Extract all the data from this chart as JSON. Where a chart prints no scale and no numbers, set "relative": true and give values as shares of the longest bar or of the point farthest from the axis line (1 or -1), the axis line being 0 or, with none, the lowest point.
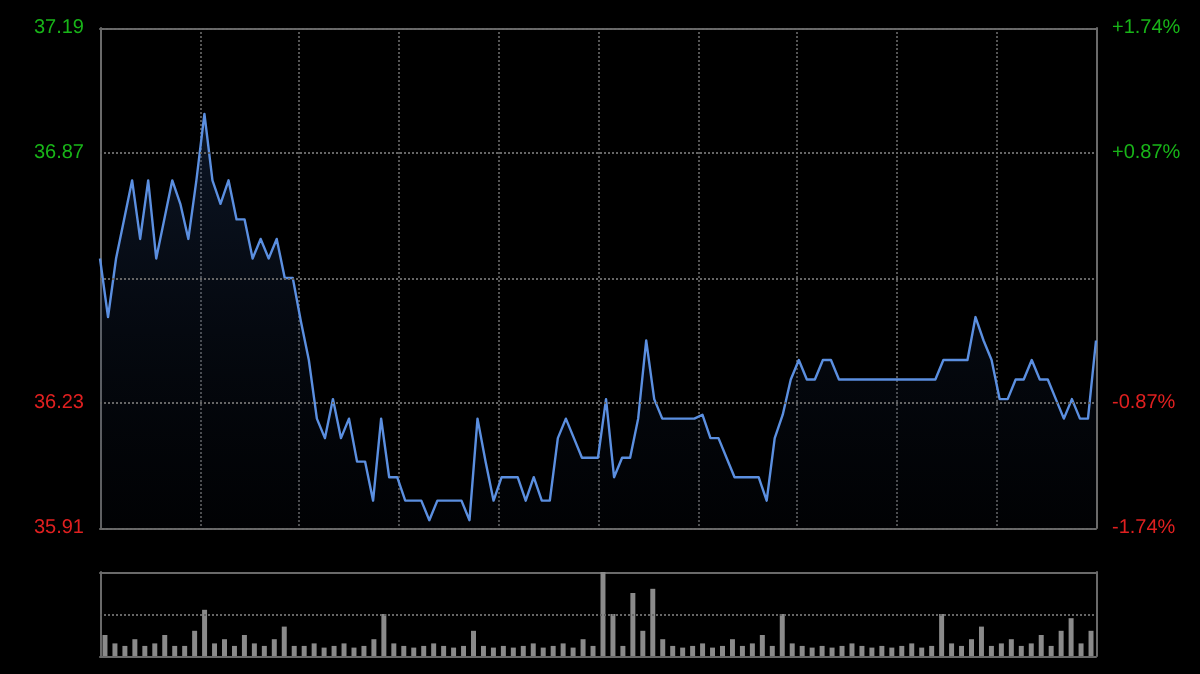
{
  "chart_data": [
    {
      "type": "area",
      "categories": [
        null,
        null,
        null,
        null,
        null,
        null,
        null,
        null,
        null,
        null,
        null,
        null,
        null,
        null,
        null,
        null,
        null,
        null,
        null,
        null,
        null,
        null,
        null,
        null,
        null,
        null,
        null,
        null,
        null,
        null,
        null,
        null,
        null,
        null,
        null,
        null,
        null,
        null,
        null,
        null,
        null,
        null,
        null,
        null,
        null,
        null,
        null,
        null,
        null,
        null,
        null,
        null,
        null,
        null,
        null,
        null,
        null,
        null,
        null,
        null,
        null,
        null,
        null,
        null,
        null,
        null,
        null,
        null,
        null,
        null,
        null,
        null,
        null,
        null,
        null,
        null,
        null,
        null,
        null,
        null,
        null,
        null,
        null,
        null,
        null,
        null,
        null,
        null,
        null,
        null,
        null,
        null,
        null,
        null,
        null,
        null,
        null,
        null,
        null,
        null,
        null,
        null,
        null,
        null,
        null,
        null,
        null,
        null,
        null,
        null,
        null,
        null,
        null,
        null,
        null,
        null,
        null,
        null,
        null,
        null,
        null,
        null,
        null,
        null,
        null
      ],
      "series": [
        {
          "color": "#5b8fe0",
          "values": [
            36.6,
            36.45,
            36.6,
            36.7,
            36.8,
            36.65,
            36.8,
            36.6,
            36.7,
            36.8,
            36.74,
            36.65,
            36.8,
            36.97,
            36.8,
            36.74,
            36.8,
            36.7,
            36.7,
            36.6,
            36.65,
            36.6,
            36.65,
            36.55,
            36.55,
            36.44,
            36.34,
            36.19,
            36.14,
            36.24,
            36.14,
            36.19,
            36.08,
            36.08,
            35.98,
            36.19,
            36.04,
            36.04,
            35.98,
            35.98,
            35.98,
            35.93,
            35.98,
            35.98,
            35.98,
            35.98,
            35.93,
            36.19,
            36.08,
            35.98,
            36.04,
            36.04,
            36.04,
            35.98,
            36.04,
            35.98,
            35.98,
            36.14,
            36.19,
            36.14,
            36.09,
            36.09,
            36.09,
            36.24,
            36.04,
            36.09,
            36.09,
            36.19,
            36.39,
            36.24,
            36.19,
            36.19,
            36.19,
            36.19,
            36.19,
            36.2,
            36.14,
            36.14,
            36.09,
            36.04,
            36.04,
            36.04,
            36.04,
            35.98,
            36.14,
            36.2,
            36.29,
            36.34,
            36.29,
            36.29,
            36.34,
            36.34,
            36.29,
            36.29,
            36.29,
            36.29,
            36.29,
            36.29,
            36.29,
            36.29,
            36.29,
            36.29,
            36.29,
            36.29,
            36.29,
            36.34,
            36.34,
            36.34,
            36.34,
            36.45,
            36.39,
            36.34,
            36.24,
            36.24,
            36.29,
            36.29,
            36.34,
            36.29,
            36.29,
            36.24,
            36.19,
            36.24,
            36.19,
            36.19,
            36.39
          ]
        }
      ],
      "ylim": [
        35.91,
        37.19
      ],
      "yticks": [
        35.91,
        36.23,
        {
          "value": 36.55,
          "label": null
        },
        36.87,
        37.19
      ],
      "y2lim": [
        -1.74,
        1.74
      ],
      "y2ticks": [
        {
          "value": -1.74,
          "label": "-1.74%"
        },
        {
          "value": -0.87,
          "label": "-0.87%"
        },
        {
          "value": 0,
          "label": null
        },
        {
          "value": 0.87,
          "label": "+0.87%"
        },
        {
          "value": 1.74,
          "label": "+1.74%"
        }
      ],
      "grid": true
    },
    {
      "type": "bar",
      "relative": true,
      "ref_lines": [
        {
          "axis": "y",
          "value": 0.5,
          "line_style": "dotted"
        }
      ],
      "categories": [
        null,
        null,
        null,
        null,
        null,
        null,
        null,
        null,
        null,
        null,
        null,
        null,
        null,
        null,
        null,
        null,
        null,
        null,
        null,
        null,
        null,
        null,
        null,
        null,
        null,
        null,
        null,
        null,
        null,
        null,
        null,
        null,
        null,
        null,
        null,
        null,
        null,
        null,
        null,
        null,
        null,
        null,
        null,
        null,
        null,
        null,
        null,
        null,
        null,
        null,
        null,
        null,
        null,
        null,
        null,
        null,
        null,
        null,
        null,
        null,
        null,
        null,
        null,
        null,
        null,
        null,
        null,
        null,
        null,
        null,
        null,
        null,
        null,
        null,
        null,
        null,
        null,
        null,
        null,
        null,
        null,
        null,
        null,
        null,
        null,
        null,
        null,
        null,
        null,
        null,
        null,
        null,
        null,
        null,
        null,
        null,
        null,
        null,
        null,
        null
      ],
      "series": [
        {
          "color": "#8a8a8a",
          "values": [
            0.25,
            0.15,
            0.12,
            0.2,
            0.12,
            0.15,
            0.25,
            0.12,
            0.12,
            0.3,
            0.55,
            0.15,
            0.2,
            0.12,
            0.25,
            0.15,
            0.12,
            0.2,
            0.35,
            0.12,
            0.12,
            0.15,
            0.1,
            0.12,
            0.15,
            0.1,
            0.12,
            0.2,
            0.5,
            0.15,
            0.12,
            0.1,
            0.12,
            0.15,
            0.12,
            0.1,
            0.12,
            0.3,
            0.12,
            0.1,
            0.12,
            0.1,
            0.12,
            0.15,
            0.1,
            0.12,
            0.15,
            0.1,
            0.2,
            0.12,
            1.0,
            0.5,
            0.12,
            0.75,
            0.3,
            0.8,
            0.2,
            0.12,
            0.1,
            0.12,
            0.15,
            0.1,
            0.12,
            0.2,
            0.12,
            0.15,
            0.25,
            0.12,
            0.5,
            0.15,
            0.12,
            0.1,
            0.12,
            0.1,
            0.12,
            0.15,
            0.12,
            0.1,
            0.12,
            0.1,
            0.12,
            0.15,
            0.1,
            0.12,
            0.5,
            0.15,
            0.12,
            0.2,
            0.35,
            0.12,
            0.15,
            0.2,
            0.12,
            0.15,
            0.25,
            0.12,
            0.3,
            0.45,
            0.15,
            0.3
          ]
        }
      ]
    }
  ]
}
